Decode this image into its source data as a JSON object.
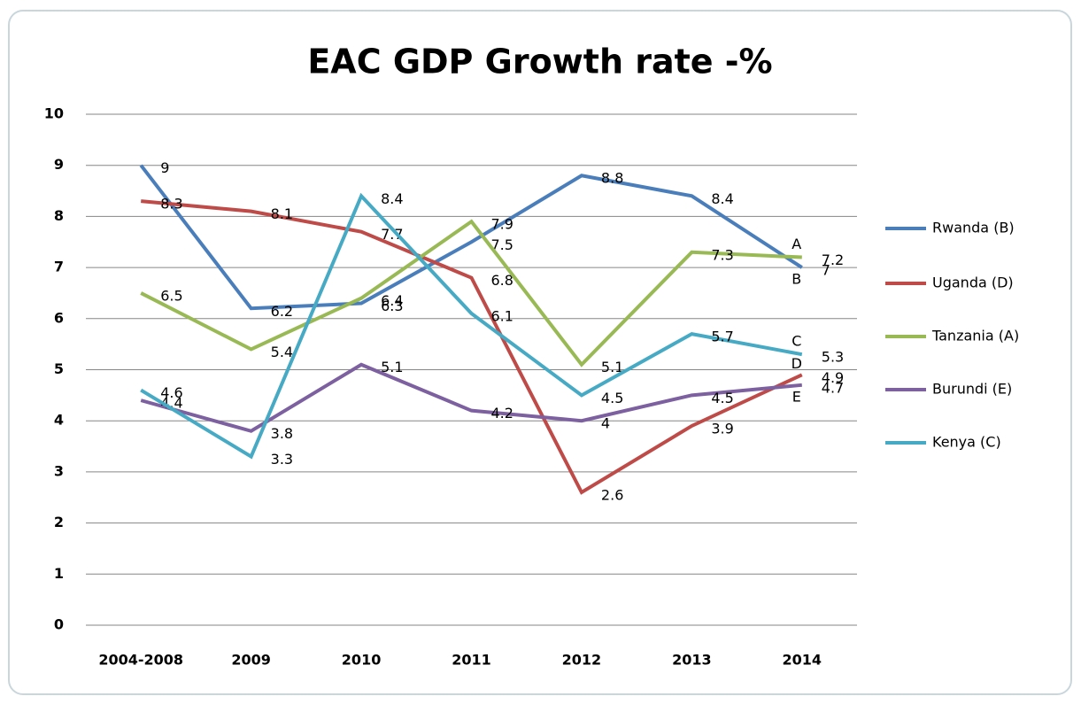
{
  "chart_data": {
    "type": "line",
    "title": "EAC GDP Growth rate -%",
    "categories": [
      "2004-2008",
      "2009",
      "2010",
      "2011",
      "2012",
      "2013",
      "2014"
    ],
    "series": [
      {
        "name": "Rwanda (B)",
        "color": "#4a7ebb",
        "values": [
          9,
          6.2,
          6.3,
          7.5,
          8.8,
          8.4,
          7
        ],
        "end_label": "B"
      },
      {
        "name": "Uganda (D)",
        "color": "#be4b48",
        "values": [
          8.3,
          8.1,
          7.7,
          6.8,
          2.6,
          3.9,
          4.9
        ],
        "end_label": "D"
      },
      {
        "name": "Tanzania (A)",
        "color": "#98b954",
        "values": [
          6.5,
          5.4,
          6.4,
          7.9,
          5.1,
          7.3,
          7.2
        ],
        "end_label": "A"
      },
      {
        "name": "Burundi (E)",
        "color": "#7d60a0",
        "values": [
          4.4,
          3.8,
          5.1,
          4.2,
          4,
          4.5,
          4.7
        ],
        "end_label": "E"
      },
      {
        "name": "Kenya (C)",
        "color": "#46aac5",
        "values": [
          4.6,
          3.3,
          8.4,
          6.1,
          4.5,
          5.7,
          5.3
        ],
        "end_label": "C"
      }
    ],
    "ylim": [
      0,
      10
    ],
    "yticks": [
      0,
      1,
      2,
      3,
      4,
      5,
      6,
      7,
      8,
      9,
      10
    ],
    "grid": true,
    "legend": "right",
    "data_labels": true
  }
}
